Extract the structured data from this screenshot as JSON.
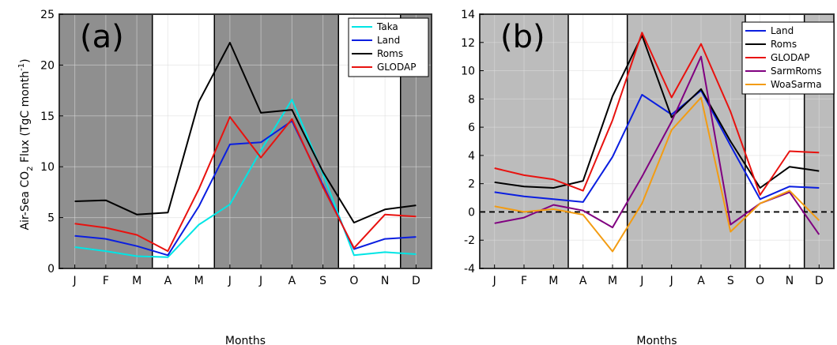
{
  "chart_data": [
    {
      "type": "line",
      "panel_label": "(a)",
      "categories": [
        "J",
        "F",
        "M",
        "A",
        "M",
        "J",
        "J",
        "A",
        "S",
        "O",
        "N",
        "D"
      ],
      "xlabel": "Months",
      "ylabel": "Air-Sea CO",
      "ylabel_sub": "2",
      "ylabel_mid": " Flux (TgC month",
      "ylabel_sup": "-1",
      "ylabel_end": ")",
      "ylim": [
        0,
        25
      ],
      "yticks": [
        "0",
        "5",
        "10",
        "15",
        "20",
        "25"
      ],
      "grid": true,
      "legend": "top-right",
      "shaded_bands": [
        [
          0.5,
          3.5
        ],
        [
          5.5,
          9.5
        ],
        [
          11.5,
          12.5
        ]
      ],
      "separators": [
        3.5,
        5.5,
        9.5,
        11.5
      ],
      "series": [
        {
          "name": "Taka",
          "color": "#00e5e5",
          "values": [
            2.1,
            1.7,
            1.2,
            1.1,
            4.3,
            6.3,
            11.6,
            16.6,
            9.3,
            1.3,
            1.6,
            1.4
          ]
        },
        {
          "name": "Land",
          "color": "#0a1ee0",
          "values": [
            3.2,
            2.9,
            2.2,
            1.3,
            6.1,
            12.2,
            12.4,
            14.5,
            8.2,
            1.9,
            2.9,
            3.1
          ]
        },
        {
          "name": "Roms",
          "color": "#000000",
          "values": [
            6.6,
            6.7,
            5.3,
            5.5,
            16.4,
            22.2,
            15.3,
            15.6,
            9.5,
            4.5,
            5.8,
            6.2
          ]
        },
        {
          "name": "GLODAP",
          "color": "#e8120f",
          "values": [
            4.4,
            4.0,
            3.3,
            1.7,
            7.8,
            14.9,
            10.9,
            14.7,
            8.0,
            2.0,
            5.3,
            5.1
          ]
        }
      ]
    },
    {
      "type": "line",
      "panel_label": "(b)",
      "categories": [
        "J",
        "F",
        "M",
        "A",
        "M",
        "J",
        "J",
        "A",
        "S",
        "O",
        "N",
        "D"
      ],
      "xlabel": "Months",
      "ylim": [
        -4,
        14
      ],
      "yticks": [
        "-4",
        "-2",
        "0",
        "2",
        "4",
        "6",
        "8",
        "10",
        "12",
        "14"
      ],
      "zero_line": true,
      "grid": true,
      "legend": "top-right",
      "shaded_bands": [
        [
          0.5,
          3.5
        ],
        [
          5.5,
          9.5
        ],
        [
          11.5,
          12.5
        ]
      ],
      "separators": [
        3.5,
        5.5,
        9.5,
        11.5
      ],
      "series": [
        {
          "name": "Land",
          "color": "#0a1ee0",
          "values": [
            1.4,
            1.1,
            0.9,
            0.7,
            3.9,
            8.3,
            6.9,
            8.6,
            4.7,
            0.9,
            1.8,
            1.7
          ]
        },
        {
          "name": "Roms",
          "color": "#000000",
          "values": [
            2.1,
            1.8,
            1.7,
            2.2,
            8.2,
            12.5,
            6.7,
            8.7,
            5.0,
            1.7,
            3.2,
            2.9
          ]
        },
        {
          "name": "GLODAP",
          "color": "#e8120f",
          "values": [
            3.1,
            2.6,
            2.3,
            1.5,
            6.5,
            12.7,
            8.1,
            11.9,
            7.1,
            1.2,
            4.3,
            4.2
          ]
        },
        {
          "name": "SarmRoms",
          "color": "#800080",
          "values": [
            -0.8,
            -0.4,
            0.5,
            0.1,
            -1.1,
            2.5,
            6.4,
            11.0,
            -0.9,
            0.6,
            1.4,
            -1.6
          ]
        },
        {
          "name": "WoaSarma",
          "color": "#f39c12",
          "values": [
            0.4,
            0.0,
            0.2,
            -0.2,
            -2.8,
            0.6,
            5.8,
            8.1,
            -1.4,
            0.6,
            1.5,
            -0.6
          ]
        }
      ]
    }
  ]
}
